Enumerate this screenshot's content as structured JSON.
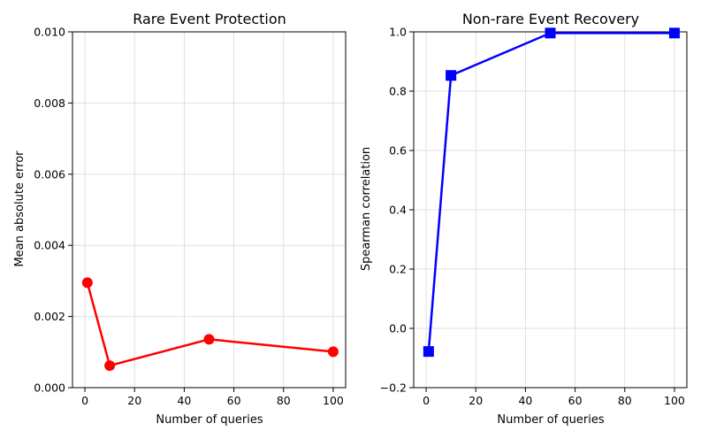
{
  "chart_data": [
    {
      "type": "line",
      "title": "Rare Event Protection",
      "xlabel": "Number of queries",
      "ylabel": "Mean absolute error",
      "x": [
        1,
        10,
        50,
        100
      ],
      "series": [
        {
          "name": "Rare event protection",
          "values": [
            0.00295,
            0.00062,
            0.00136,
            0.00101
          ],
          "color": "#ff0000",
          "marker": "circle"
        }
      ],
      "xlim": [
        -5,
        105
      ],
      "ylim": [
        0,
        0.01
      ],
      "xticks": [
        0,
        20,
        40,
        60,
        80,
        100
      ],
      "xtick_labels": [
        "0",
        "20",
        "40",
        "60",
        "80",
        "100"
      ],
      "yticks": [
        0,
        0.002,
        0.004,
        0.006,
        0.008,
        0.01
      ],
      "ytick_labels": [
        "0.000",
        "0.002",
        "0.004",
        "0.006",
        "0.008",
        "0.010"
      ],
      "grid": true
    },
    {
      "type": "line",
      "title": "Non-rare Event Recovery",
      "xlabel": "Number of queries",
      "ylabel": "Spearman correlation",
      "x": [
        1,
        10,
        50,
        100
      ],
      "series": [
        {
          "name": "Non-rare event recovery",
          "values": [
            -0.078,
            0.853,
            0.996,
            0.996
          ],
          "color": "#0000ff",
          "marker": "square"
        }
      ],
      "xlim": [
        -5,
        105
      ],
      "ylim": [
        -0.2,
        1.0
      ],
      "xticks": [
        0,
        20,
        40,
        60,
        80,
        100
      ],
      "xtick_labels": [
        "0",
        "20",
        "40",
        "60",
        "80",
        "100"
      ],
      "yticks": [
        -0.2,
        0,
        0.2,
        0.4,
        0.6,
        0.8,
        1.0
      ],
      "ytick_labels": [
        "−0.2",
        "0.0",
        "0.2",
        "0.4",
        "0.6",
        "0.8",
        "1.0"
      ],
      "grid": true
    }
  ]
}
